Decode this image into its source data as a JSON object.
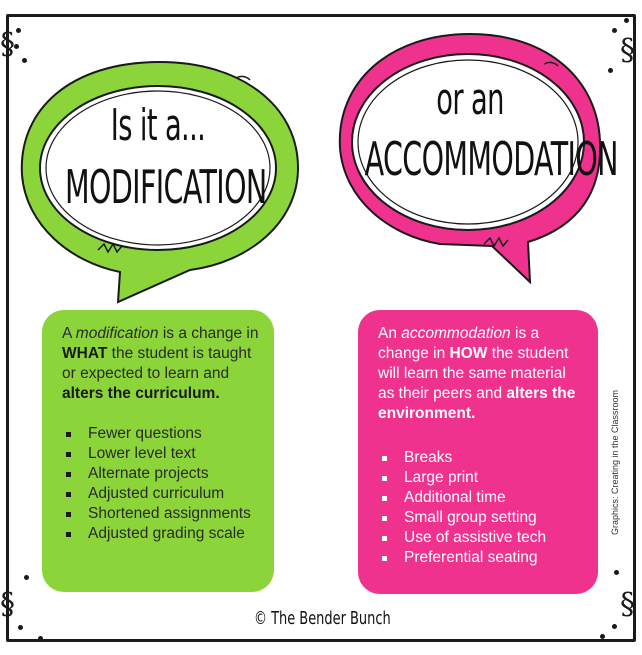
{
  "titles": {
    "left_line1": "Is it a...",
    "left_line2": "MODIFICATION",
    "right_line1": "or an",
    "right_line2": "ACCOMMODATION"
  },
  "colors": {
    "green": "#8bd53a",
    "pink": "#f0328f"
  },
  "modification": {
    "desc_parts": [
      "A ",
      "modification",
      " is a change in ",
      "WHAT",
      " the student is taught or expected to learn and ",
      "alters the curriculum."
    ],
    "items": [
      "Fewer questions",
      "Lower level text",
      "Alternate projects",
      "Adjusted curriculum",
      "Shortened assignments",
      "Adjusted grading scale"
    ]
  },
  "accommodation": {
    "desc_parts": [
      "An ",
      "accommodation",
      " is a change in ",
      "HOW",
      " the student will learn the same material as their peers and ",
      "alters the environment."
    ],
    "items": [
      "Breaks",
      "Large print",
      "Additional time",
      "Small group setting",
      "Use of assistive tech",
      "Preferential seating"
    ]
  },
  "credit": "© The Bender Bunch",
  "side_credit": "Graphics: Creating in the Classroom"
}
